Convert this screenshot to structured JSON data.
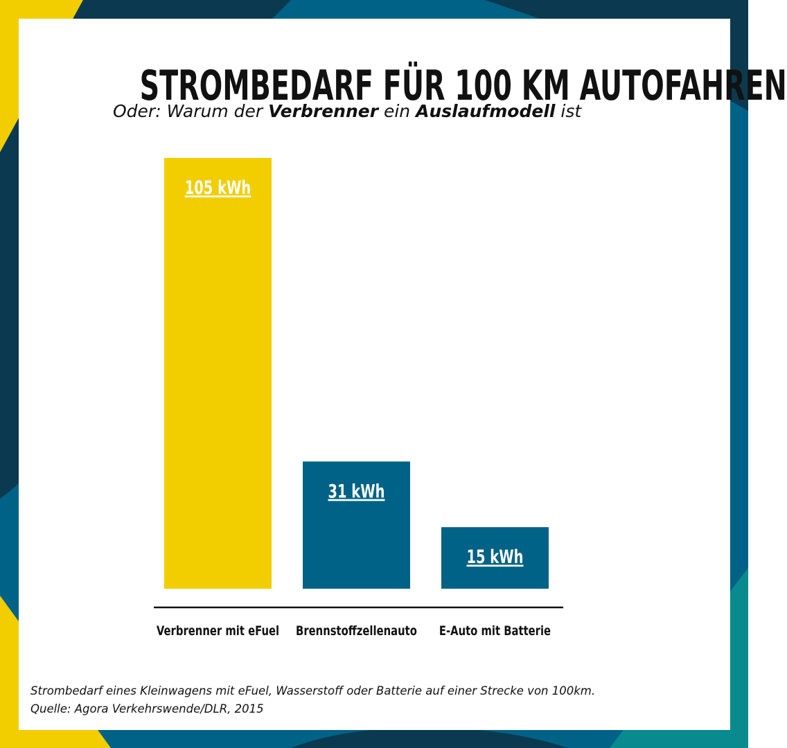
{
  "header": {
    "title": "STROMBEDARF FÜR 100 KM AUTOFAHREN",
    "subtitle_part1": "Oder: Warum der ",
    "subtitle_bold1": "Verbrenner",
    "subtitle_part2": " ein ",
    "subtitle_bold2": "Auslaufmodell",
    "subtitle_part3": " ist"
  },
  "chart_data": {
    "type": "bar",
    "categories": [
      "Verbrenner mit eFuel",
      "Brennstoffzellenauto",
      "E-Auto mit Batterie"
    ],
    "values": [
      105,
      31,
      15
    ],
    "data_labels": [
      "105 kWh",
      "31 kWh",
      "15 kWh"
    ],
    "unit": "kWh",
    "title": "STROMBEDARF FÜR 100 KM AUTOFAHREN",
    "xlabel": "",
    "ylabel": "",
    "grid": false,
    "bar_colors": [
      "#f2cd00",
      "#006286",
      "#006286"
    ]
  },
  "footnote": {
    "line1": "Strombedarf eines Kleinwagens mit eFuel, Wasserstoff oder Batterie auf einer Strecke von 100km.",
    "line2": "Quelle: Agora Verkehrswende/DLR, 2015"
  },
  "colors": {
    "yellow": "#f2cd00",
    "petrol": "#006286",
    "dark_navy": "#0b3a50",
    "teal": "#088a8f",
    "text": "#111111",
    "label_text": "#ffffff"
  }
}
